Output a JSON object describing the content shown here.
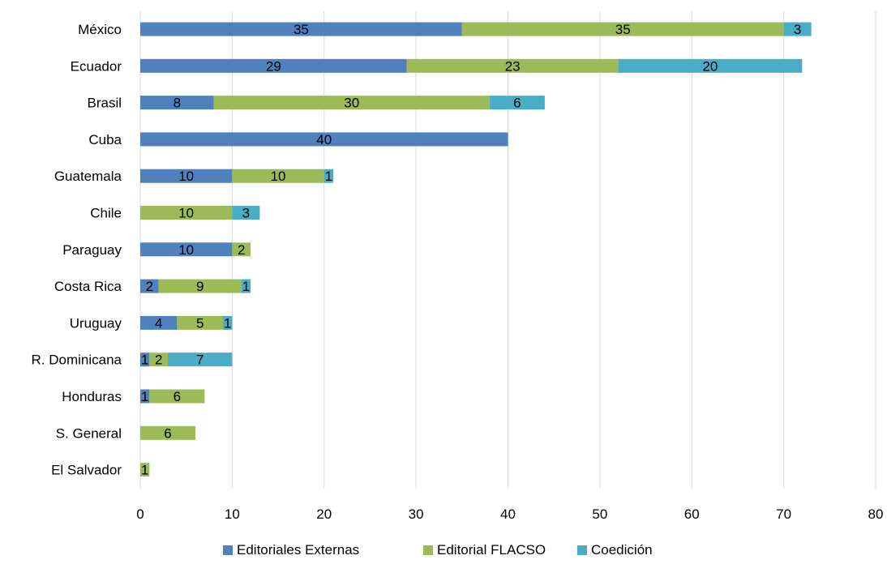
{
  "chart_data": {
    "type": "bar",
    "orientation": "horizontal",
    "stacked": true,
    "title": "",
    "xlabel": "",
    "ylabel": "",
    "xlim": [
      0,
      80
    ],
    "x_ticks": [
      0,
      10,
      20,
      30,
      40,
      50,
      60,
      70,
      80
    ],
    "grid": "vertical",
    "legend_position": "bottom",
    "categories": [
      "México",
      "Ecuador",
      "Brasil",
      "Cuba",
      "Guatemala",
      "Chile",
      "Paraguay",
      "Costa Rica",
      "Uruguay",
      "R. Dominicana",
      "Honduras",
      "S. General",
      "El Salvador"
    ],
    "series": [
      {
        "name": "Editoriales Externas",
        "color": "#4F81BD",
        "values": [
          35,
          29,
          8,
          40,
          10,
          0,
          10,
          2,
          4,
          1,
          1,
          0,
          0
        ]
      },
      {
        "name": "Editorial FLACSO",
        "color": "#9BBB59",
        "values": [
          35,
          23,
          30,
          0,
          10,
          10,
          2,
          9,
          5,
          2,
          6,
          6,
          1
        ]
      },
      {
        "name": "Coedición",
        "color": "#4BACC6",
        "values": [
          3,
          20,
          6,
          0,
          1,
          3,
          0,
          1,
          1,
          7,
          0,
          0,
          0
        ]
      }
    ]
  }
}
